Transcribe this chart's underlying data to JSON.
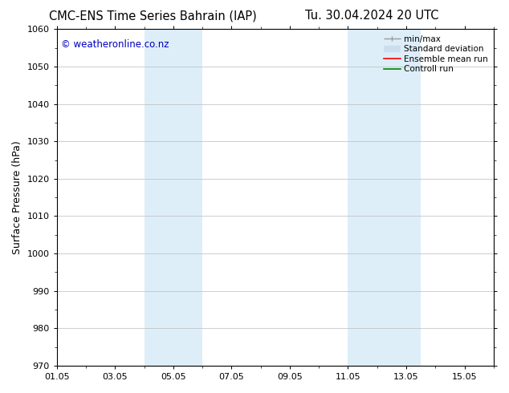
{
  "title_left": "CMC-ENS Time Series Bahrain (IAP)",
  "title_right": "Tu. 30.04.2024 20 UTC",
  "ylabel": "Surface Pressure (hPa)",
  "ylim": [
    970,
    1060
  ],
  "yticks": [
    970,
    980,
    990,
    1000,
    1010,
    1020,
    1030,
    1040,
    1050,
    1060
  ],
  "xtick_labels": [
    "01.05",
    "03.05",
    "05.05",
    "07.05",
    "09.05",
    "11.05",
    "13.05",
    "15.05"
  ],
  "xtick_positions": [
    0,
    2,
    4,
    6,
    8,
    10,
    12,
    14
  ],
  "xlim": [
    0,
    15
  ],
  "shaded_regions": [
    {
      "x_start": 3.0,
      "x_end": 5.0,
      "color": "#ddeef9"
    },
    {
      "x_start": 10.0,
      "x_end": 12.5,
      "color": "#ddeef9"
    }
  ],
  "watermark_text": "© weatheronline.co.nz",
  "watermark_color": "#0000bb",
  "watermark_fontsize": 8.5,
  "bg_color": "#ffffff",
  "plot_bg_color": "#ffffff",
  "grid_color": "#bbbbbb",
  "title_fontsize": 10.5,
  "axis_label_fontsize": 9,
  "tick_fontsize": 8,
  "legend_fontsize": 7.5,
  "legend_items": [
    {
      "label": "min/max",
      "color": "#999999",
      "type": "hline"
    },
    {
      "label": "Standard deviation",
      "color": "#ccddee",
      "type": "hline_thick"
    },
    {
      "label": "Ensemble mean run",
      "color": "red",
      "type": "hline"
    },
    {
      "label": "Controll run",
      "color": "green",
      "type": "hline"
    }
  ]
}
